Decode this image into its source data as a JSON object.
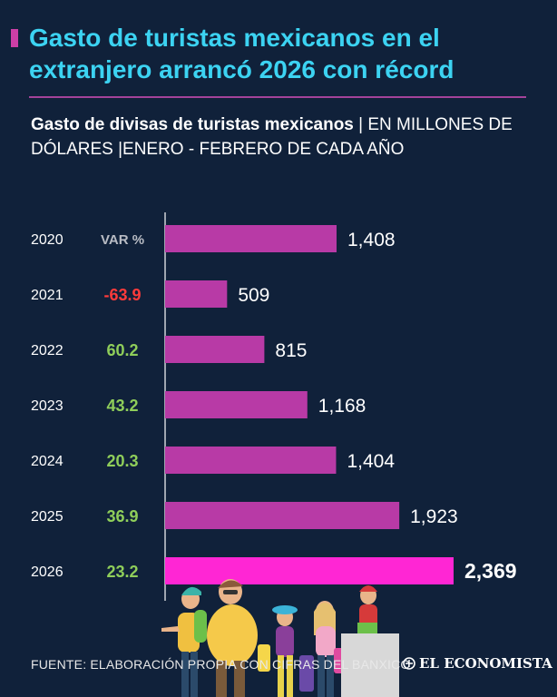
{
  "header": {
    "title": "Gasto de turistas mexicanos en el extranjero arrancó 2026 con récord",
    "subtitle_bold": "Gasto de divisas de turistas mexicanos",
    "subtitle_rest": " | EN MILLONES DE DÓLARES  |ENERO - FEBRERO DE CADA AÑO"
  },
  "colors": {
    "background": "#10213a",
    "title": "#3cd3f2",
    "bar": "#b83aa6",
    "bar_highlight": "#ff26d4",
    "positive": "#8fce5a",
    "negative": "#ff3b3b",
    "var_header": "#b9bcc4"
  },
  "chart_data": {
    "type": "bar",
    "orientation": "horizontal",
    "title": "Gasto de divisas de turistas mexicanos",
    "unit": "Millones de dólares",
    "period": "Enero - Febrero de cada año",
    "categories": [
      "2020",
      "2021",
      "2022",
      "2023",
      "2024",
      "2025",
      "2026"
    ],
    "values": [
      1408,
      509,
      815,
      1168,
      1404,
      1923,
      2369
    ],
    "value_labels": [
      "1,408",
      "509",
      "815",
      "1,168",
      "1,404",
      "1,923",
      "2,369"
    ],
    "var_header": "VAR %",
    "var_pct": [
      "",
      "-63.9",
      "60.2",
      "43.2",
      "20.3",
      "36.9",
      "23.2"
    ],
    "highlight": "2026",
    "xlim": [
      0,
      2369
    ]
  },
  "footer": {
    "source": "FUENTE: ELABORACIÓN PROPIA CON CIFRAS DEL BANXICO",
    "brand": "EL ECONOMISTA"
  }
}
